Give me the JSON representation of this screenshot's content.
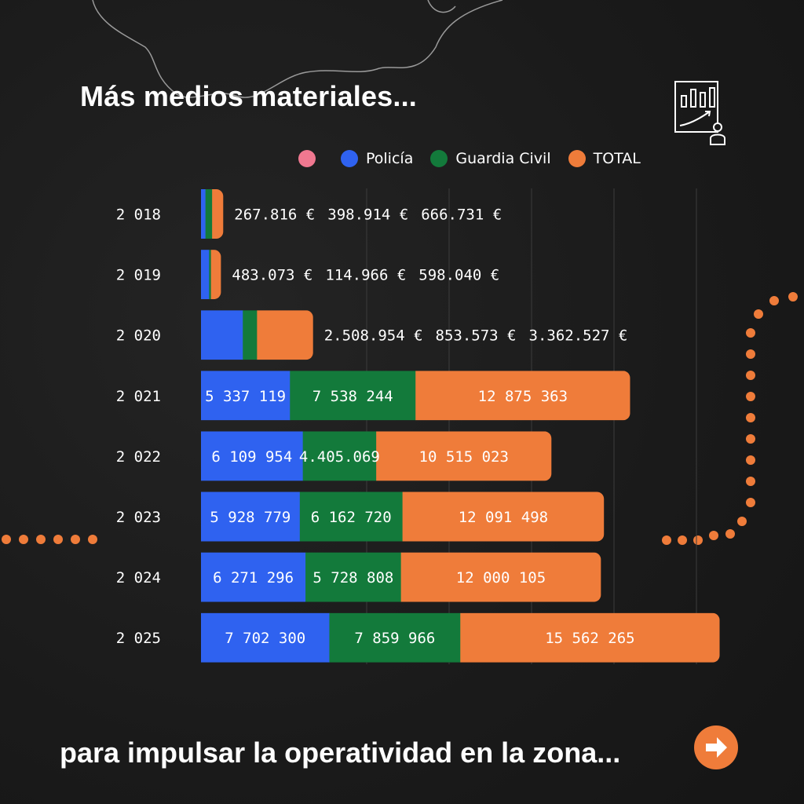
{
  "header": {
    "title": "Más medios materiales..."
  },
  "footer": {
    "text": "para impulsar la operatividad en la zona...",
    "next_icon": "arrow-right-icon"
  },
  "icons": {
    "report": "chart-report-icon"
  },
  "colors": {
    "policia": "#2f62f0",
    "guardia": "#137a3b",
    "total": "#ef7c3a",
    "legend_pink": "#f07890",
    "bar_text": "#ffffff"
  },
  "legend": [
    {
      "label": "",
      "color": "#f07890"
    },
    {
      "label": "Policía",
      "color": "#2f62f0"
    },
    {
      "label": "Guardia Civil",
      "color": "#137a3b"
    },
    {
      "label": "TOTAL",
      "color": "#ef7c3a"
    }
  ],
  "chart_data": {
    "type": "bar",
    "orientation": "horizontal",
    "stacked": true,
    "title": "Más medios materiales...",
    "categories": [
      "2 018",
      "2 019",
      "2 020",
      "2 021",
      "2 022",
      "2 023",
      "2 024",
      "2 025"
    ],
    "series": [
      {
        "name": "Policía",
        "values": [
          267816,
          483073,
          2508954,
          5337119,
          6109954,
          5928779,
          6271296,
          7702300
        ],
        "labels": [
          "267.816 €",
          "483.073 €",
          "2.508.954 €",
          "5 337 119",
          "6 109 954",
          "5 928 779",
          "6 271 296",
          "7 702 300"
        ]
      },
      {
        "name": "Guardia Civil",
        "values": [
          398914,
          114966,
          853573,
          7538244,
          4405069,
          6162720,
          5728808,
          7859966
        ],
        "labels": [
          "398.914 €",
          "114.966 €",
          "853.573 €",
          "7 538 244",
          "4.405.069",
          "6 162 720",
          "5 728 808",
          "7 859 966"
        ]
      },
      {
        "name": "TOTAL",
        "values": [
          666731,
          598040,
          3362527,
          12875363,
          10515023,
          12091498,
          12000105,
          15562265
        ],
        "labels": [
          "666.731 €",
          "598.040 €",
          "3.362.527 €",
          "12 875 363",
          "10 515 023",
          "12 091 498",
          "12 000 105",
          "15 562 265"
        ]
      }
    ],
    "xlim": [
      0,
      31100000
    ],
    "grid": true,
    "legend_position": "top-right"
  }
}
